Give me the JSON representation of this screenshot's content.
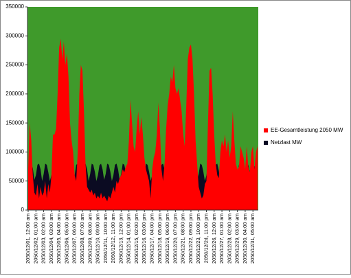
{
  "chart_data": {
    "type": "area",
    "categories": [
      "2050/12/01, 12:00 am",
      null,
      null,
      null,
      null,
      "2050/12/02, 01:00 am",
      null,
      null,
      null,
      null,
      "2050/12/03, 02:00 am",
      null,
      null,
      null,
      null,
      "2050/12/04, 03:00 am",
      null,
      null,
      null,
      null,
      "2050/12/05, 04:00 am",
      null,
      null,
      null,
      null,
      "2050/12/06, 05:00 am",
      null,
      null,
      null,
      null,
      "2050/12/07, 06:00 am",
      null,
      null,
      null,
      null,
      "2050/12/08, 07:00 am",
      null,
      null,
      null,
      null,
      "2050/12/09, 08:00 am",
      null,
      null,
      null,
      null,
      "2050/12/10, 09:00 am",
      null,
      null,
      null,
      null,
      "2050/12/11, 10:00 am",
      null,
      null,
      null,
      null,
      "2050/12/12, 11:00 am",
      null,
      null,
      null,
      null,
      "2050/12/13, 12:00 pm",
      null,
      null,
      null,
      null,
      "2050/12/14, 01:00 pm",
      null,
      null,
      null,
      null,
      "2050/12/15, 02:00 pm",
      null,
      null,
      null,
      null,
      "2050/12/16, 03:00 pm",
      null,
      null,
      null,
      null,
      "2050/12/17, 04:00 pm",
      null,
      null,
      null,
      null,
      "2050/12/18, 05:00 pm",
      null,
      null,
      null,
      null,
      "2050/12/19, 06:00 pm",
      null,
      null,
      null,
      null,
      "2050/12/20, 07:00 pm",
      null,
      null,
      null,
      null,
      "2050/12/21, 08:00 pm",
      null,
      null,
      null,
      null,
      "2050/12/22, 09:00 pm",
      null,
      null,
      null,
      null,
      "2050/12/23, 10:00 pm",
      null,
      null,
      null,
      null,
      "2050/12/24, 11:00 pm",
      null,
      null,
      null,
      null,
      "2050/12/26, 12:00 am",
      null,
      null,
      null,
      null,
      "2050/12/27, 01:00 am",
      null,
      null,
      null,
      null,
      "2050/12/28, 02:00 am",
      null,
      null,
      null,
      null,
      "2050/12/29, 03:00 am",
      null,
      null,
      null,
      null,
      "2050/12/30, 04:00 am",
      null,
      null,
      null,
      null,
      "2050/12/31, 05:00 am",
      null,
      null,
      null
    ],
    "series": [
      {
        "name": "Netzlast MW",
        "color": "#0b0b22",
        "values": [
          55000,
          70000,
          80000,
          72000,
          52000,
          60000,
          78000,
          80000,
          70000,
          50000,
          62000,
          80000,
          78000,
          65000,
          50000,
          60000,
          76000,
          80000,
          70000,
          52000,
          60000,
          78000,
          80000,
          68000,
          50000,
          62000,
          80000,
          78000,
          66000,
          50000,
          60000,
          78000,
          80000,
          70000,
          52000,
          60000,
          78000,
          80000,
          70000,
          50000,
          62000,
          80000,
          78000,
          66000,
          50000,
          60000,
          77000,
          80000,
          70000,
          52000,
          62000,
          80000,
          78000,
          66000,
          50000,
          60000,
          78000,
          80000,
          70000,
          52000,
          62000,
          80000,
          78000,
          66000,
          50000,
          60000,
          76000,
          80000,
          70000,
          52000,
          60000,
          78000,
          80000,
          68000,
          50000,
          62000,
          80000,
          78000,
          66000,
          50000,
          60000,
          78000,
          80000,
          70000,
          52000,
          60000,
          78000,
          80000,
          70000,
          50000,
          62000,
          80000,
          78000,
          66000,
          50000,
          60000,
          77000,
          80000,
          70000,
          52000,
          62000,
          80000,
          78000,
          66000,
          50000,
          60000,
          78000,
          80000,
          70000,
          52000,
          62000,
          80000,
          78000,
          66000,
          50000,
          60000,
          76000,
          80000,
          70000,
          52000,
          60000,
          78000,
          80000,
          68000,
          50000,
          62000,
          80000,
          78000,
          66000,
          50000,
          60000,
          78000,
          80000,
          70000,
          52000,
          60000,
          78000,
          80000,
          70000,
          50000,
          62000,
          80000,
          78000,
          66000,
          50000,
          60000,
          75000,
          80000,
          70000
        ]
      },
      {
        "name": "EE-Gesamtleistung 2050 MW",
        "color": "#ff0000",
        "values": [
          70000,
          150000,
          120000,
          60000,
          30000,
          25000,
          45000,
          20000,
          40000,
          25000,
          30000,
          50000,
          20000,
          45000,
          30000,
          60000,
          130000,
          130000,
          140000,
          200000,
          280000,
          295000,
          260000,
          290000,
          250000,
          270000,
          230000,
          150000,
          120000,
          100000,
          60000,
          50000,
          100000,
          200000,
          250000,
          240000,
          170000,
          80000,
          40000,
          35000,
          30000,
          35000,
          25000,
          30000,
          20000,
          25000,
          20000,
          30000,
          20000,
          25000,
          20000,
          15000,
          25000,
          20000,
          30000,
          40000,
          30000,
          50000,
          45000,
          55000,
          60000,
          70000,
          65000,
          75000,
          80000,
          120000,
          190000,
          150000,
          110000,
          100000,
          140000,
          170000,
          130000,
          160000,
          130000,
          90000,
          70000,
          60000,
          50000,
          20000,
          70000,
          90000,
          100000,
          130000,
          185000,
          140000,
          70000,
          50000,
          80000,
          140000,
          180000,
          200000,
          230000,
          220000,
          250000,
          210000,
          200000,
          210000,
          190000,
          170000,
          130000,
          110000,
          180000,
          260000,
          280000,
          285000,
          260000,
          200000,
          120000,
          80000,
          40000,
          30000,
          20000,
          25000,
          45000,
          50000,
          150000,
          240000,
          245000,
          200000,
          130000,
          80000,
          60000,
          55000,
          100000,
          120000,
          110000,
          130000,
          100000,
          120000,
          90000,
          110000,
          170000,
          120000,
          80000,
          70000,
          75000,
          110000,
          100000,
          90000,
          70000,
          110000,
          75000,
          65000,
          100000,
          110000,
          70000,
          100000,
          110000
        ]
      }
    ],
    "ylim": [
      0,
      350000
    ],
    "yticks": [
      0,
      50000,
      100000,
      150000,
      200000,
      250000,
      300000,
      350000
    ],
    "plot_background": "#3f9a2b",
    "legend": "right"
  }
}
